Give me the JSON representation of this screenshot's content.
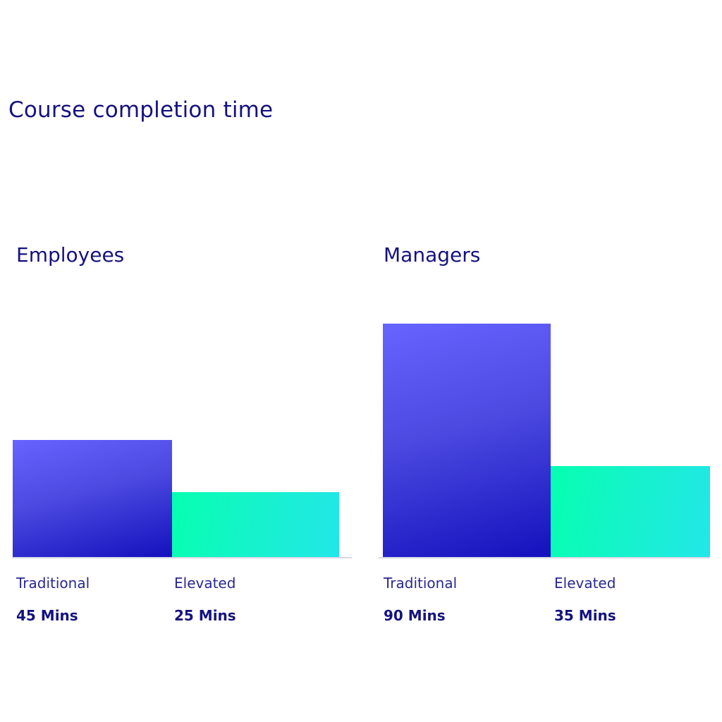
{
  "title": "Course completion time",
  "colors": {
    "traditional": "#5e5cf5",
    "elevated": "#12f2c6",
    "text": "#14127f"
  },
  "chart_data": [
    {
      "type": "bar",
      "title": "Employees",
      "categories": [
        "Traditional",
        "Elevated"
      ],
      "values": [
        45,
        25
      ],
      "value_labels": [
        "45 Mins",
        "25 Mins"
      ],
      "unit": "Mins",
      "ylim": [
        0,
        90
      ],
      "grid": false
    },
    {
      "type": "bar",
      "title": "Managers",
      "categories": [
        "Traditional",
        "Elevated"
      ],
      "values": [
        90,
        35
      ],
      "value_labels": [
        "90 Mins",
        "35 Mins"
      ],
      "unit": "Mins",
      "ylim": [
        0,
        90
      ],
      "grid": false
    }
  ]
}
